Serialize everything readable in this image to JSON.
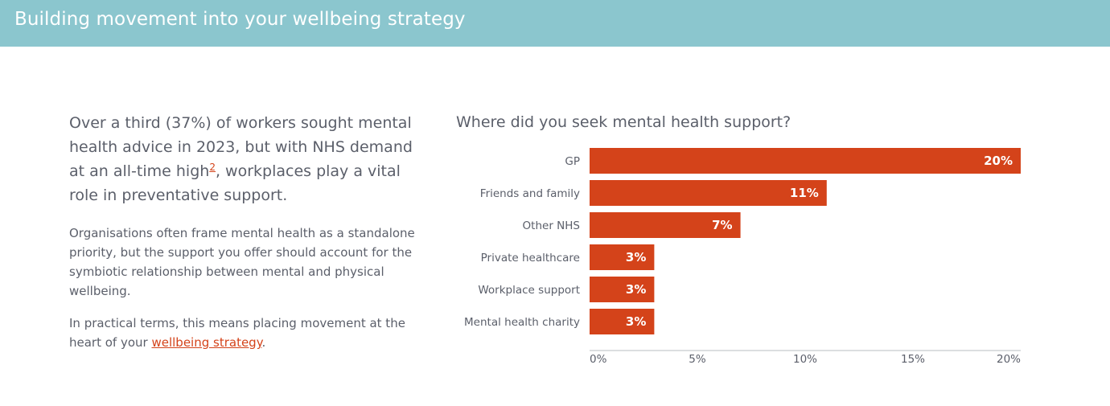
{
  "header": {
    "title": "Building movement into your wellbeing strategy"
  },
  "intro": {
    "lead_before": "Over a third (37%) of workers sought mental health advice in 2023, but with NHS demand at an all-time high",
    "lead_sup": "2",
    "lead_after": ", workplaces play a vital role in preventative support.",
    "para1": "Organisations often frame mental health as a standalone priority, but the support you offer should account for the symbiotic relationship between mental and physical wellbeing.",
    "para2_before": "In practical terms, this means placing movement at the heart of your ",
    "para2_link": "wellbeing strategy",
    "para2_after": "."
  },
  "colors": {
    "header_bg": "#8bc6ce",
    "bar": "#d4431a",
    "link": "#d4431a"
  },
  "chart_data": {
    "type": "bar",
    "orientation": "horizontal",
    "title": "Where did you seek mental health support?",
    "categories": [
      "GP",
      "Friends and family",
      "Other NHS",
      "Private healthcare",
      "Workplace support",
      "Mental health charity"
    ],
    "values": [
      20,
      11,
      7,
      3,
      3,
      3
    ],
    "value_labels": [
      "20%",
      "11%",
      "7%",
      "3%",
      "3%",
      "3%"
    ],
    "xlim": [
      0,
      20
    ],
    "xticks": [
      0,
      5,
      10,
      15,
      20
    ],
    "xtick_labels": [
      "0%",
      "5%",
      "10%",
      "15%",
      "20%"
    ],
    "xlabel": "",
    "ylabel": ""
  }
}
